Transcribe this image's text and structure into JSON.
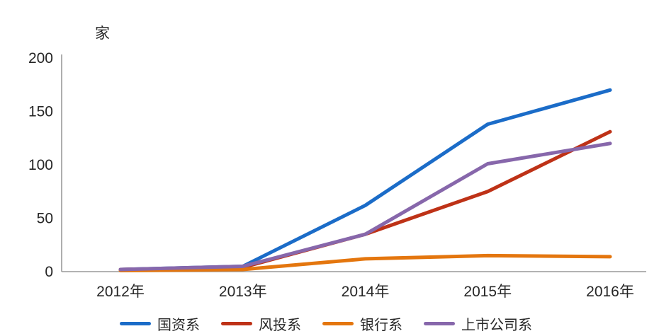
{
  "chart_data": {
    "type": "line",
    "unit_label": "家",
    "categories": [
      "2012年",
      "2013年",
      "2014年",
      "2015年",
      "2016年"
    ],
    "series": [
      {
        "name": "国资系",
        "color": "#1B6CC8",
        "values": [
          2,
          5,
          62,
          138,
          170
        ]
      },
      {
        "name": "风投系",
        "color": "#BE3217",
        "values": [
          2,
          4,
          35,
          75,
          131
        ]
      },
      {
        "name": "银行系",
        "color": "#E4760E",
        "values": [
          1,
          2,
          12,
          15,
          14
        ]
      },
      {
        "name": "上市公司系",
        "color": "#8767AB",
        "values": [
          2,
          5,
          35,
          101,
          120
        ]
      }
    ],
    "ylim": [
      0,
      200
    ],
    "yticks": [
      0,
      50,
      100,
      150,
      200
    ],
    "grid": false,
    "legend_position": "bottom",
    "axis_color": "#999999",
    "text_color": "#262626"
  }
}
